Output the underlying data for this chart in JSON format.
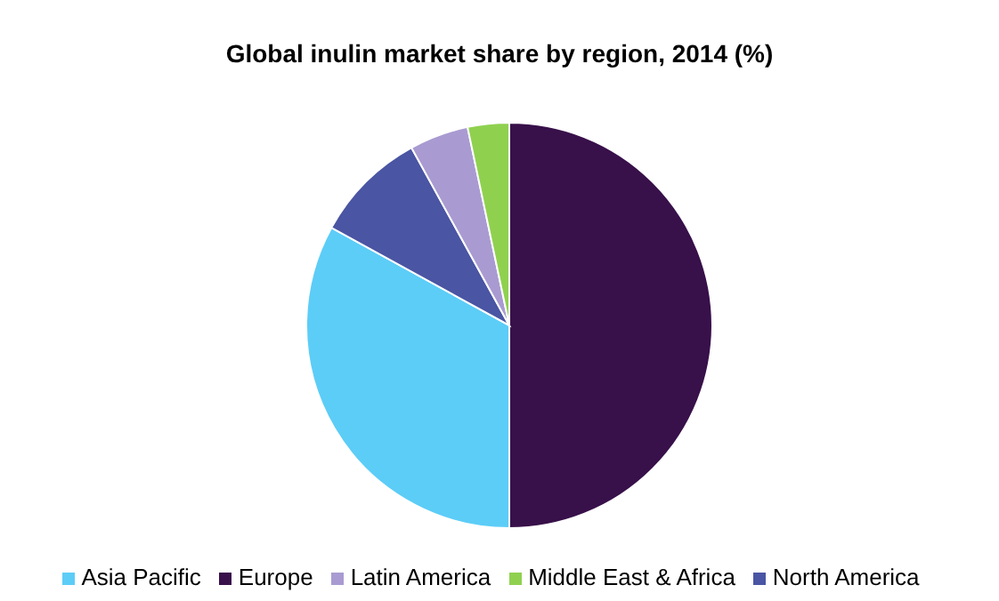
{
  "chart_data": {
    "type": "pie",
    "title": "Global inulin market share by region, 2014 (%)",
    "categories": [
      "Europe",
      "Asia Pacific",
      "North America",
      "Latin America",
      "Middle East & Africa"
    ],
    "values": [
      50,
      33,
      9,
      4.7,
      3.3
    ],
    "colors": [
      "#38104a",
      "#5ccdf7",
      "#4a55a3",
      "#a99bd1",
      "#8fd14f"
    ],
    "legend": "bottom"
  }
}
